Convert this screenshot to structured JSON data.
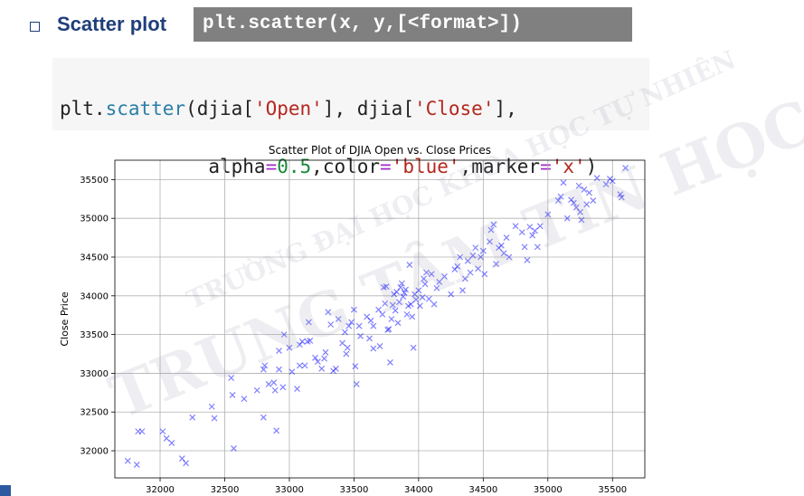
{
  "slide": {
    "heading": "Scatter plot",
    "syntax": "plt.scatter(x, y,[<format>])",
    "code": {
      "line1": [
        "plt.",
        "scatter",
        "(djia[",
        "'Open'",
        "], djia[",
        "'Close'",
        "],"
      ],
      "line2": [
        "             alpha",
        "=",
        "0.5",
        ",color",
        "=",
        "'blue'",
        ",marker",
        "=",
        "'x'",
        ")"
      ]
    },
    "watermark": {
      "line1": "TRƯỜNG ĐẠI HỌC KHOA HỌC TỰ NHIÊN",
      "line2": "TRUNG TÂM TIN HỌC"
    }
  },
  "chart_data": {
    "type": "scatter",
    "title": "Scatter Plot of DJIA Open vs. Close Prices",
    "xlabel": "",
    "ylabel": "Close Price",
    "xlim": [
      31650,
      35750
    ],
    "ylim": [
      31650,
      35750
    ],
    "xticks": [
      32000,
      32500,
      33000,
      33500,
      34000,
      34500,
      35000,
      35500
    ],
    "yticks": [
      32000,
      32500,
      33000,
      33500,
      34000,
      34500,
      35000,
      35500
    ],
    "grid": true,
    "marker": "x",
    "color": "#0000ff",
    "alpha": 0.5,
    "points": [
      [
        31750,
        31870
      ],
      [
        31820,
        31820
      ],
      [
        31830,
        32250
      ],
      [
        31860,
        32250
      ],
      [
        32020,
        32250
      ],
      [
        32050,
        32160
      ],
      [
        32090,
        32100
      ],
      [
        32170,
        31900
      ],
      [
        32200,
        31840
      ],
      [
        32250,
        32430
      ],
      [
        32400,
        32570
      ],
      [
        32420,
        32420
      ],
      [
        32550,
        32940
      ],
      [
        32560,
        32720
      ],
      [
        32570,
        32030
      ],
      [
        32650,
        32670
      ],
      [
        32750,
        32780
      ],
      [
        32800,
        33050
      ],
      [
        32810,
        33100
      ],
      [
        32800,
        32430
      ],
      [
        32840,
        32860
      ],
      [
        32880,
        32880
      ],
      [
        32890,
        32780
      ],
      [
        32900,
        32260
      ],
      [
        32920,
        33050
      ],
      [
        32920,
        33290
      ],
      [
        32950,
        32820
      ],
      [
        32960,
        33500
      ],
      [
        33000,
        33330
      ],
      [
        33020,
        33020
      ],
      [
        33060,
        32800
      ],
      [
        33080,
        33370
      ],
      [
        33080,
        33100
      ],
      [
        33100,
        33410
      ],
      [
        33120,
        33100
      ],
      [
        33140,
        33410
      ],
      [
        33150,
        33660
      ],
      [
        33160,
        33420
      ],
      [
        33200,
        33200
      ],
      [
        33220,
        33150
      ],
      [
        33250,
        33060
      ],
      [
        33270,
        33190
      ],
      [
        33280,
        33270
      ],
      [
        33300,
        33790
      ],
      [
        33320,
        33630
      ],
      [
        33340,
        33030
      ],
      [
        33360,
        33060
      ],
      [
        33380,
        33700
      ],
      [
        33410,
        33390
      ],
      [
        33430,
        33530
      ],
      [
        33440,
        33250
      ],
      [
        33450,
        33330
      ],
      [
        33460,
        33610
      ],
      [
        33480,
        33660
      ],
      [
        33500,
        33820
      ],
      [
        33510,
        33090
      ],
      [
        33520,
        32860
      ],
      [
        33540,
        33610
      ],
      [
        33550,
        33480
      ],
      [
        33600,
        33730
      ],
      [
        33620,
        33450
      ],
      [
        33630,
        33680
      ],
      [
        33650,
        33610
      ],
      [
        33650,
        33320
      ],
      [
        33690,
        33820
      ],
      [
        33700,
        33350
      ],
      [
        33720,
        33760
      ],
      [
        33730,
        34110
      ],
      [
        33740,
        33900
      ],
      [
        33750,
        34120
      ],
      [
        33760,
        33560
      ],
      [
        33770,
        33570
      ],
      [
        33780,
        33140
      ],
      [
        33790,
        33700
      ],
      [
        33800,
        33880
      ],
      [
        33810,
        34020
      ],
      [
        33820,
        33810
      ],
      [
        33830,
        34050
      ],
      [
        33840,
        33650
      ],
      [
        33850,
        33920
      ],
      [
        33860,
        34110
      ],
      [
        33870,
        34160
      ],
      [
        33880,
        33990
      ],
      [
        33890,
        34040
      ],
      [
        33900,
        34080
      ],
      [
        33910,
        33760
      ],
      [
        33920,
        33870
      ],
      [
        33930,
        34400
      ],
      [
        33940,
        33890
      ],
      [
        33950,
        33730
      ],
      [
        33960,
        33330
      ],
      [
        33970,
        34020
      ],
      [
        33980,
        33950
      ],
      [
        34000,
        34070
      ],
      [
        34010,
        33870
      ],
      [
        34030,
        33980
      ],
      [
        34040,
        34220
      ],
      [
        34050,
        34150
      ],
      [
        34060,
        34300
      ],
      [
        34080,
        33960
      ],
      [
        34100,
        34280
      ],
      [
        34120,
        33890
      ],
      [
        34140,
        34100
      ],
      [
        34160,
        34180
      ],
      [
        34200,
        34250
      ],
      [
        34250,
        34020
      ],
      [
        34280,
        34340
      ],
      [
        34300,
        34380
      ],
      [
        34320,
        34500
      ],
      [
        34340,
        34070
      ],
      [
        34360,
        34220
      ],
      [
        34380,
        34450
      ],
      [
        34400,
        34300
      ],
      [
        34420,
        34520
      ],
      [
        34440,
        34620
      ],
      [
        34460,
        34350
      ],
      [
        34480,
        34500
      ],
      [
        34500,
        34580
      ],
      [
        34510,
        34280
      ],
      [
        34550,
        34700
      ],
      [
        34560,
        34850
      ],
      [
        34580,
        34920
      ],
      [
        34600,
        34410
      ],
      [
        34620,
        34620
      ],
      [
        34640,
        34650
      ],
      [
        34660,
        34550
      ],
      [
        34680,
        34750
      ],
      [
        34700,
        34500
      ],
      [
        34750,
        34900
      ],
      [
        34800,
        34820
      ],
      [
        34820,
        34630
      ],
      [
        34840,
        34460
      ],
      [
        34860,
        34890
      ],
      [
        34880,
        34780
      ],
      [
        34900,
        34840
      ],
      [
        34920,
        34630
      ],
      [
        34940,
        34900
      ],
      [
        35000,
        35050
      ],
      [
        35080,
        35230
      ],
      [
        35100,
        35280
      ],
      [
        35120,
        35460
      ],
      [
        35150,
        35000
      ],
      [
        35180,
        35240
      ],
      [
        35200,
        35200
      ],
      [
        35220,
        35140
      ],
      [
        35240,
        35420
      ],
      [
        35250,
        35080
      ],
      [
        35260,
        34980
      ],
      [
        35280,
        35370
      ],
      [
        35300,
        35180
      ],
      [
        35320,
        35330
      ],
      [
        35350,
        35230
      ],
      [
        35380,
        35520
      ],
      [
        35450,
        35440
      ],
      [
        35480,
        35510
      ],
      [
        35500,
        35480
      ],
      [
        35560,
        35310
      ],
      [
        35570,
        35270
      ],
      [
        35600,
        35650
      ]
    ]
  }
}
